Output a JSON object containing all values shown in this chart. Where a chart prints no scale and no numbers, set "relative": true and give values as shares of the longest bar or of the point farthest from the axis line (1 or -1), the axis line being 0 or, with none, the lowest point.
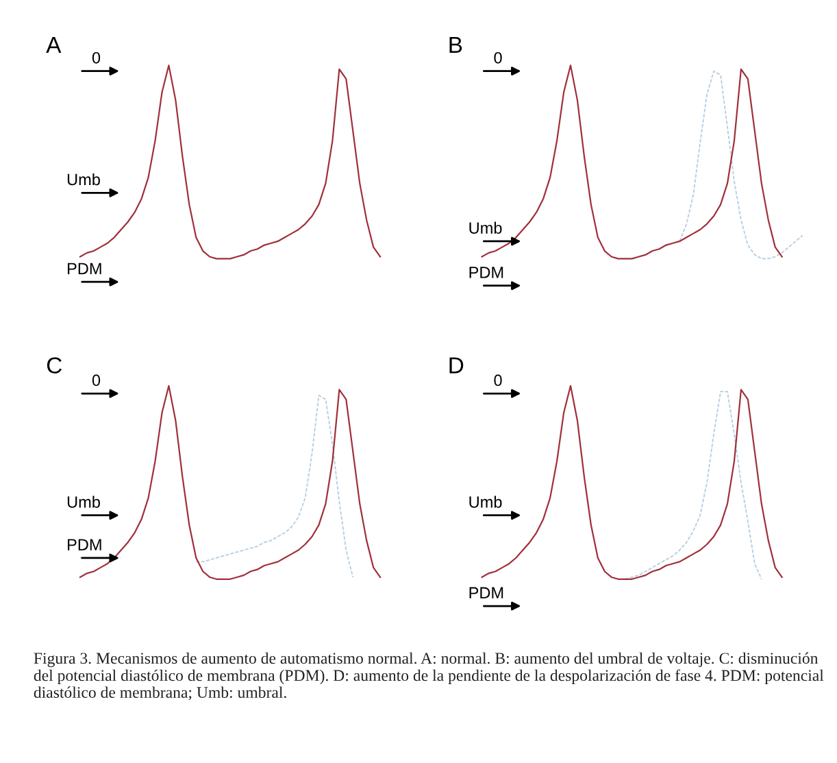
{
  "chart_data": [
    {
      "type": "line",
      "title": "A",
      "relative": true,
      "marker": "none",
      "categories": [
        null,
        null,
        null,
        null,
        null,
        null,
        null,
        null,
        null,
        null,
        null,
        null,
        null,
        null,
        null,
        null,
        null,
        null,
        null,
        null,
        null,
        null,
        null,
        null,
        null,
        null,
        null,
        null,
        null,
        null,
        null,
        null,
        null,
        null,
        null,
        null,
        null,
        null,
        null,
        null,
        null,
        null,
        null,
        null,
        null,
        null,
        null,
        null,
        null
      ],
      "series": [
        {
          "color": "#a0303a",
          "line_style": "solid",
          "values": [
            0.01,
            0.03,
            0.04,
            0.06,
            0.08,
            0.11,
            0.15,
            0.19,
            0.24,
            0.31,
            0.42,
            0.61,
            0.86,
            1,
            0.82,
            0.53,
            0.28,
            0.11,
            0.04,
            0.01,
            0,
            0,
            0,
            0.01,
            0.02,
            0.04,
            0.05,
            0.07,
            0.08,
            0.09,
            0.11,
            0.13,
            0.15,
            0.18,
            0.22,
            0.28,
            0.39,
            0.61,
            0.98,
            0.93,
            0.66,
            0.39,
            0.2,
            0.06,
            0.01,
            null,
            null,
            null,
            null
          ]
        }
      ],
      "annotations": [
        "0",
        "Umb",
        "PDM"
      ]
    },
    {
      "type": "line",
      "title": "B",
      "relative": true,
      "marker": "none",
      "categories": [
        null,
        null,
        null,
        null,
        null,
        null,
        null,
        null,
        null,
        null,
        null,
        null,
        null,
        null,
        null,
        null,
        null,
        null,
        null,
        null,
        null,
        null,
        null,
        null,
        null,
        null,
        null,
        null,
        null,
        null,
        null,
        null,
        null,
        null,
        null,
        null,
        null,
        null,
        null,
        null,
        null,
        null,
        null,
        null,
        null,
        null,
        null,
        null,
        null
      ],
      "series": [
        {
          "color": "#b8d0e2",
          "line_style": "dashed",
          "values": [
            null,
            null,
            null,
            null,
            null,
            null,
            null,
            null,
            null,
            null,
            null,
            null,
            null,
            null,
            null,
            null,
            null,
            null,
            null,
            null,
            null,
            null,
            null,
            null,
            null,
            null,
            null,
            null,
            null,
            0.09,
            0.18,
            0.33,
            0.6,
            0.85,
            0.97,
            0.95,
            0.68,
            0.4,
            0.2,
            0.07,
            0.02,
            0,
            0,
            0.01,
            0.03,
            0.06,
            0.09,
            0.12,
            null
          ]
        },
        {
          "color": "#a0303a",
          "line_style": "solid",
          "values": [
            0.01,
            0.03,
            0.04,
            0.06,
            0.08,
            0.11,
            0.15,
            0.19,
            0.24,
            0.31,
            0.42,
            0.61,
            0.86,
            1,
            0.82,
            0.53,
            0.28,
            0.11,
            0.04,
            0.01,
            0,
            0,
            0,
            0.01,
            0.02,
            0.04,
            0.05,
            0.07,
            0.08,
            0.09,
            0.11,
            0.13,
            0.15,
            0.18,
            0.22,
            0.28,
            0.39,
            0.61,
            0.98,
            0.93,
            0.66,
            0.39,
            0.2,
            0.06,
            0.01,
            null,
            null,
            null,
            null
          ]
        }
      ],
      "annotations": [
        "0",
        "Umb",
        "PDM"
      ]
    },
    {
      "type": "line",
      "title": "C",
      "relative": true,
      "marker": "none",
      "categories": [
        null,
        null,
        null,
        null,
        null,
        null,
        null,
        null,
        null,
        null,
        null,
        null,
        null,
        null,
        null,
        null,
        null,
        null,
        null,
        null,
        null,
        null,
        null,
        null,
        null,
        null,
        null,
        null,
        null,
        null,
        null,
        null,
        null,
        null,
        null,
        null,
        null,
        null,
        null,
        null,
        null,
        null,
        null,
        null,
        null,
        null,
        null,
        null,
        null
      ],
      "series": [
        {
          "color": "#b8d0e2",
          "line_style": "dashed",
          "values": [
            0.11,
            0.11,
            0.11,
            0.11,
            0.11,
            0.11,
            0.11,
            null,
            null,
            null,
            null,
            null,
            null,
            null,
            null,
            null,
            null,
            0.09,
            0.09,
            0.1,
            0.11,
            0.12,
            0.13,
            0.14,
            0.15,
            0.16,
            0.17,
            0.19,
            0.2,
            0.22,
            0.24,
            0.27,
            0.32,
            0.42,
            0.65,
            0.95,
            0.93,
            0.7,
            0.4,
            0.15,
            0.01,
            null,
            null,
            null,
            null,
            null,
            null,
            null,
            null
          ]
        },
        {
          "color": "#a0303a",
          "line_style": "solid",
          "values": [
            0.01,
            0.03,
            0.04,
            0.06,
            0.08,
            0.11,
            0.15,
            0.19,
            0.24,
            0.31,
            0.42,
            0.61,
            0.86,
            1,
            0.82,
            0.53,
            0.28,
            0.11,
            0.04,
            0.01,
            0,
            0,
            0,
            0.01,
            0.02,
            0.04,
            0.05,
            0.07,
            0.08,
            0.09,
            0.11,
            0.13,
            0.15,
            0.18,
            0.22,
            0.28,
            0.39,
            0.61,
            0.98,
            0.93,
            0.66,
            0.39,
            0.2,
            0.06,
            0.01,
            null,
            null,
            null,
            null
          ]
        }
      ],
      "annotations": [
        "0",
        "Umb",
        "PDM"
      ]
    },
    {
      "type": "line",
      "title": "D",
      "relative": true,
      "marker": "none",
      "categories": [
        null,
        null,
        null,
        null,
        null,
        null,
        null,
        null,
        null,
        null,
        null,
        null,
        null,
        null,
        null,
        null,
        null,
        null,
        null,
        null,
        null,
        null,
        null,
        null,
        null,
        null,
        null,
        null,
        null,
        null,
        null,
        null,
        null,
        null,
        null,
        null,
        null,
        null,
        null,
        null,
        null,
        null,
        null,
        null,
        null,
        null,
        null,
        null,
        null
      ],
      "series": [
        {
          "color": "#b8d0e2",
          "line_style": "dashed",
          "values": [
            null,
            null,
            null,
            null,
            null,
            null,
            null,
            null,
            null,
            null,
            null,
            null,
            null,
            null,
            null,
            null,
            null,
            null,
            null,
            null,
            null,
            0,
            0.01,
            0.02,
            0.04,
            0.06,
            0.08,
            0.1,
            0.12,
            0.15,
            0.19,
            0.25,
            0.33,
            0.5,
            0.75,
            0.97,
            0.97,
            0.75,
            0.5,
            0.3,
            0.08,
            0,
            null,
            null,
            null,
            null,
            null,
            null,
            null
          ]
        },
        {
          "color": "#a0303a",
          "line_style": "solid",
          "values": [
            0.01,
            0.03,
            0.04,
            0.06,
            0.08,
            0.11,
            0.15,
            0.19,
            0.24,
            0.31,
            0.42,
            0.61,
            0.86,
            1,
            0.82,
            0.53,
            0.28,
            0.11,
            0.04,
            0.01,
            0,
            0,
            0,
            0.01,
            0.02,
            0.04,
            0.05,
            0.07,
            0.08,
            0.09,
            0.11,
            0.13,
            0.15,
            0.18,
            0.22,
            0.28,
            0.39,
            0.61,
            0.98,
            0.93,
            0.66,
            0.39,
            0.2,
            0.06,
            0.01,
            null,
            null,
            null,
            null
          ]
        }
      ],
      "annotations": [
        "0",
        "Umb",
        "PDM",
        "Figura 3. Mecanismos de aumento de automatismo normal. A: normal. B: aumento del umbral de voltaje. C: disminución del potencial diastólico de membrana (PDM). D: aumento de la pendiente de la despolarización de fase 4. PDM: potencial diastólico de membrana; Umb: umbral."
      ]
    }
  ]
}
